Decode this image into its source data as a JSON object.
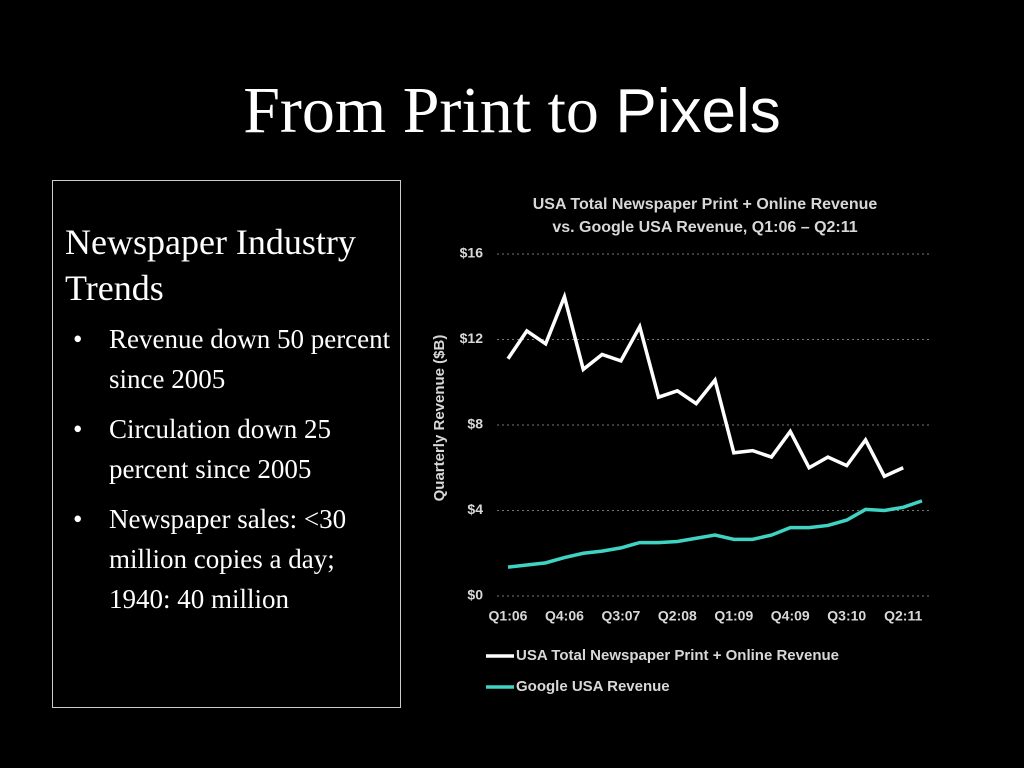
{
  "slide": {
    "title_serif": "From Print to",
    "title_sans": "Pixels",
    "box_heading": "Newspaper Industry Trends",
    "bullets": [
      "Revenue down 50 percent since 2005",
      "Circulation down 25 percent since 2005",
      "Newspaper sales: <30 million copies a day; 1940: 40 million"
    ]
  },
  "chart_data": {
    "type": "line",
    "title": "USA Total Newspaper Print + Online Revenue",
    "subtitle": "vs. Google USA Revenue, Q1:06 – Q2:11",
    "y_label": "Quarterly Revenue ($B)",
    "categories": [
      "Q1:06",
      null,
      null,
      "Q4:06",
      null,
      null,
      "Q3:07",
      null,
      null,
      "Q2:08",
      null,
      null,
      "Q1:09",
      null,
      null,
      "Q4:09",
      null,
      null,
      "Q3:10",
      null,
      null,
      "Q2:11",
      null
    ],
    "series": [
      {
        "name": "USA Total Newspaper Print + Online Revenue",
        "color": "#ffffff",
        "values": [
          11.1,
          12.4,
          11.8,
          14.0,
          10.6,
          11.3,
          11.0,
          12.6,
          9.3,
          9.6,
          9.0,
          10.1,
          6.7,
          6.8,
          6.5,
          7.7,
          6.0,
          6.5,
          6.1,
          7.3,
          5.6,
          6.0,
          null
        ]
      },
      {
        "name": "Google USA Revenue",
        "color": "#3fd3c3",
        "values": [
          1.35,
          1.45,
          1.55,
          1.8,
          2.0,
          2.1,
          2.25,
          2.5,
          2.5,
          2.55,
          2.7,
          2.85,
          2.65,
          2.65,
          2.85,
          3.2,
          3.2,
          3.3,
          3.55,
          4.05,
          4.0,
          4.15,
          4.45
        ]
      }
    ],
    "ylim": [
      0,
      16
    ],
    "yticks": [
      {
        "value": 0,
        "label": "$0"
      },
      {
        "value": 4,
        "label": "$4"
      },
      {
        "value": 8,
        "label": "$8"
      },
      {
        "value": 12,
        "label": "$12"
      },
      {
        "value": 16,
        "label": "$16"
      }
    ],
    "grid": true
  }
}
